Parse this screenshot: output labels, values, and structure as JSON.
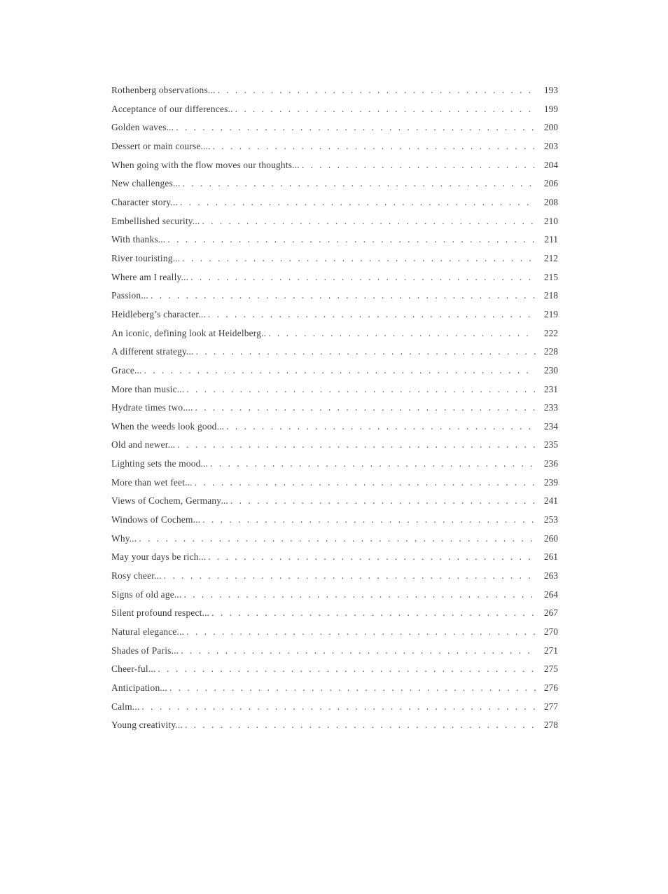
{
  "page": {
    "background": "#ffffff",
    "text_color": "#3b3b3b"
  },
  "toc": {
    "entries": [
      {
        "title": "Rothenberg observations...",
        "page": "193"
      },
      {
        "title": "Acceptance of our differences..",
        "page": "199"
      },
      {
        "title": "Golden waves...",
        "page": "200"
      },
      {
        "title": "Dessert or main course....",
        "page": "203"
      },
      {
        "title": "When going with the flow moves our thoughts...",
        "page": "204"
      },
      {
        "title": "New challenges...",
        "page": "206"
      },
      {
        "title": "Character story...",
        "page": "208"
      },
      {
        "title": "Embellished security...",
        "page": "210"
      },
      {
        "title": "With thanks...",
        "page": "211"
      },
      {
        "title": "River touristing...",
        "page": "212"
      },
      {
        "title": "Where am I really...",
        "page": "215"
      },
      {
        "title": "Passion...",
        "page": "218"
      },
      {
        "title": "Heidleberg’s character...",
        "page": "219"
      },
      {
        "title": "An iconic, defining look at Heidelberg..",
        "page": "222"
      },
      {
        "title": "A different strategy...",
        "page": "228"
      },
      {
        "title": "Grace...",
        "page": "230"
      },
      {
        "title": "More than music...",
        "page": "231"
      },
      {
        "title": "Hydrate times two....",
        "page": "233"
      },
      {
        "title": "When the weeds look good...",
        "page": "234"
      },
      {
        "title": "Old and newer...",
        "page": "235"
      },
      {
        "title": "Lighting sets the mood...",
        "page": "236"
      },
      {
        "title": "More than wet feet...",
        "page": "239"
      },
      {
        "title": "Views of Cochem, Germany...",
        "page": "241"
      },
      {
        "title": "Windows of Cochem...",
        "page": "253"
      },
      {
        "title": "Why...",
        "page": "260"
      },
      {
        "title": "May your days be rich...",
        "page": "261"
      },
      {
        "title": "Rosy cheer...",
        "page": "263"
      },
      {
        "title": "Signs of old age...",
        "page": "264"
      },
      {
        "title": "Silent profound respect...",
        "page": "267"
      },
      {
        "title": "Natural elegance...",
        "page": "270"
      },
      {
        "title": "Shades of Paris...",
        "page": "271"
      },
      {
        "title": "Cheer-ful...",
        "page": "275"
      },
      {
        "title": "Anticipation...",
        "page": "276"
      },
      {
        "title": "Calm...",
        "page": "277"
      },
      {
        "title": "Young creativity...",
        "page": "278"
      }
    ]
  }
}
